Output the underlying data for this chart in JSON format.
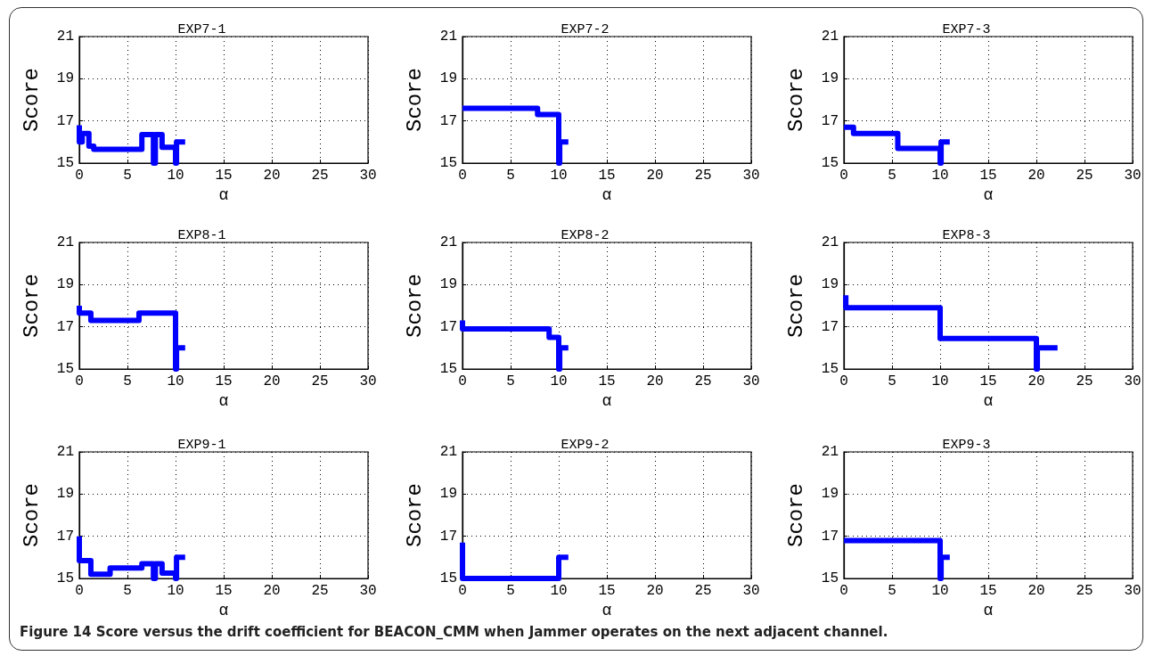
{
  "chart_data": [
    {
      "type": "line",
      "title": "EXP7-1",
      "xlabel": "α",
      "ylabel": "Score",
      "xlim": [
        0,
        30
      ],
      "ylim": [
        15,
        21
      ],
      "xticks": [
        0,
        5,
        10,
        15,
        20,
        25,
        30
      ],
      "yticks": [
        15,
        17,
        19,
        21
      ],
      "grid": true,
      "series": [
        {
          "color": "#0000ff",
          "x": [
            0,
            0,
            0.3,
            0.3,
            1.0,
            1.0,
            1.5,
            1.5,
            6.5,
            6.5,
            7.7,
            7.7,
            7.9,
            7.9,
            8.6,
            8.6,
            10,
            10,
            10.1,
            10.1,
            11
          ],
          "values": [
            16.8,
            16.0,
            16.0,
            16.4,
            16.4,
            15.8,
            15.8,
            15.65,
            15.65,
            16.35,
            16.35,
            15,
            15,
            16.35,
            16.35,
            15.75,
            15.75,
            15,
            15,
            16.0,
            16.0
          ]
        }
      ]
    },
    {
      "type": "line",
      "title": "EXP7-2",
      "xlabel": "α",
      "ylabel": "Score",
      "xlim": [
        0,
        30
      ],
      "ylim": [
        15,
        21
      ],
      "xticks": [
        0,
        5,
        10,
        15,
        20,
        25,
        30
      ],
      "yticks": [
        15,
        17,
        19,
        21
      ],
      "grid": true,
      "series": [
        {
          "color": "#0000ff",
          "x": [
            0,
            7.8,
            7.8,
            10,
            10,
            10.1,
            10.1,
            11
          ],
          "values": [
            17.6,
            17.6,
            17.3,
            17.3,
            15,
            15,
            16.0,
            16.0
          ]
        }
      ]
    },
    {
      "type": "line",
      "title": "EXP7-3",
      "xlabel": "α",
      "ylabel": "Score",
      "xlim": [
        0,
        30
      ],
      "ylim": [
        15,
        21
      ],
      "xticks": [
        0,
        5,
        10,
        15,
        20,
        25,
        30
      ],
      "yticks": [
        15,
        17,
        19,
        21
      ],
      "grid": true,
      "series": [
        {
          "color": "#0000ff",
          "x": [
            0,
            1.0,
            1.0,
            5.6,
            5.6,
            10,
            10,
            10.1,
            10.1,
            11
          ],
          "values": [
            16.7,
            16.7,
            16.4,
            16.4,
            15.7,
            15.7,
            15,
            15,
            16.0,
            16.0
          ]
        }
      ]
    },
    {
      "type": "line",
      "title": "EXP8-1",
      "xlabel": "α",
      "ylabel": "Score",
      "xlim": [
        0,
        30
      ],
      "ylim": [
        15,
        21
      ],
      "xticks": [
        0,
        5,
        10,
        15,
        20,
        25,
        30
      ],
      "yticks": [
        15,
        17,
        19,
        21
      ],
      "grid": true,
      "series": [
        {
          "color": "#0000ff",
          "x": [
            0,
            0,
            1.2,
            1.2,
            6.2,
            6.2,
            10,
            10,
            10.1,
            10.1,
            11
          ],
          "values": [
            18.0,
            17.65,
            17.65,
            17.3,
            17.3,
            17.65,
            17.65,
            15,
            15,
            16.0,
            16.0
          ]
        }
      ]
    },
    {
      "type": "line",
      "title": "EXP8-2",
      "xlabel": "α",
      "ylabel": "Score",
      "xlim": [
        0,
        30
      ],
      "ylim": [
        15,
        21
      ],
      "xticks": [
        0,
        5,
        10,
        15,
        20,
        25,
        30
      ],
      "yticks": [
        15,
        17,
        19,
        21
      ],
      "grid": true,
      "series": [
        {
          "color": "#0000ff",
          "x": [
            0,
            0,
            9,
            9,
            10,
            10,
            10.1,
            10.1,
            11
          ],
          "values": [
            17.3,
            16.9,
            16.9,
            16.5,
            16.5,
            15,
            15,
            16.0,
            16.0
          ]
        }
      ]
    },
    {
      "type": "line",
      "title": "EXP8-3",
      "xlabel": "α",
      "ylabel": "Score",
      "xlim": [
        0,
        30
      ],
      "ylim": [
        15,
        21
      ],
      "xticks": [
        0,
        5,
        10,
        15,
        20,
        25,
        30
      ],
      "yticks": [
        15,
        17,
        19,
        21
      ],
      "grid": true,
      "series": [
        {
          "color": "#0000ff",
          "x": [
            0.2,
            0.2,
            10,
            10,
            20,
            20,
            20.1,
            20.1,
            22.2
          ],
          "values": [
            18.5,
            17.9,
            17.9,
            16.45,
            16.45,
            15,
            15,
            16.0,
            16.0
          ]
        }
      ]
    },
    {
      "type": "line",
      "title": "EXP9-1",
      "xlabel": "α",
      "ylabel": "Score",
      "xlim": [
        0,
        30
      ],
      "ylim": [
        15,
        21
      ],
      "xticks": [
        0,
        5,
        10,
        15,
        20,
        25,
        30
      ],
      "yticks": [
        15,
        17,
        19,
        21
      ],
      "grid": true,
      "series": [
        {
          "color": "#0000ff",
          "x": [
            0,
            0,
            1.2,
            1.2,
            3.2,
            3.2,
            6.5,
            6.5,
            7.7,
            7.7,
            7.9,
            7.9,
            8.6,
            8.6,
            10,
            10,
            10.1,
            10.1,
            11
          ],
          "values": [
            17.0,
            15.85,
            15.85,
            15.2,
            15.2,
            15.5,
            15.5,
            15.7,
            15.7,
            15,
            15,
            15.7,
            15.7,
            15.25,
            15.25,
            15,
            15,
            16.0,
            16.0
          ]
        }
      ]
    },
    {
      "type": "line",
      "title": "EXP9-2",
      "xlabel": "α",
      "ylabel": "Score",
      "xlim": [
        0,
        30
      ],
      "ylim": [
        15,
        21
      ],
      "xticks": [
        0,
        5,
        10,
        15,
        20,
        25,
        30
      ],
      "yticks": [
        15,
        17,
        19,
        21
      ],
      "grid": true,
      "series": [
        {
          "color": "#0000ff",
          "x": [
            0,
            0,
            10,
            10,
            11
          ],
          "values": [
            16.7,
            15,
            15,
            16.0,
            16.0
          ]
        }
      ]
    },
    {
      "type": "line",
      "title": "EXP9-3",
      "xlabel": "α",
      "ylabel": "Score",
      "xlim": [
        0,
        30
      ],
      "ylim": [
        15,
        21
      ],
      "xticks": [
        0,
        5,
        10,
        15,
        20,
        25,
        30
      ],
      "yticks": [
        15,
        17,
        19,
        21
      ],
      "grid": true,
      "series": [
        {
          "color": "#0000ff",
          "x": [
            0,
            10,
            10,
            10.1,
            10.1,
            11
          ],
          "values": [
            16.8,
            16.8,
            15,
            15,
            16.0,
            16.0
          ]
        }
      ],
      "annotations": [
        "Figure 14 Score versus the drift coefficient for BEACON_CMM when Jammer operates on the next adjacent channel."
      ]
    }
  ]
}
